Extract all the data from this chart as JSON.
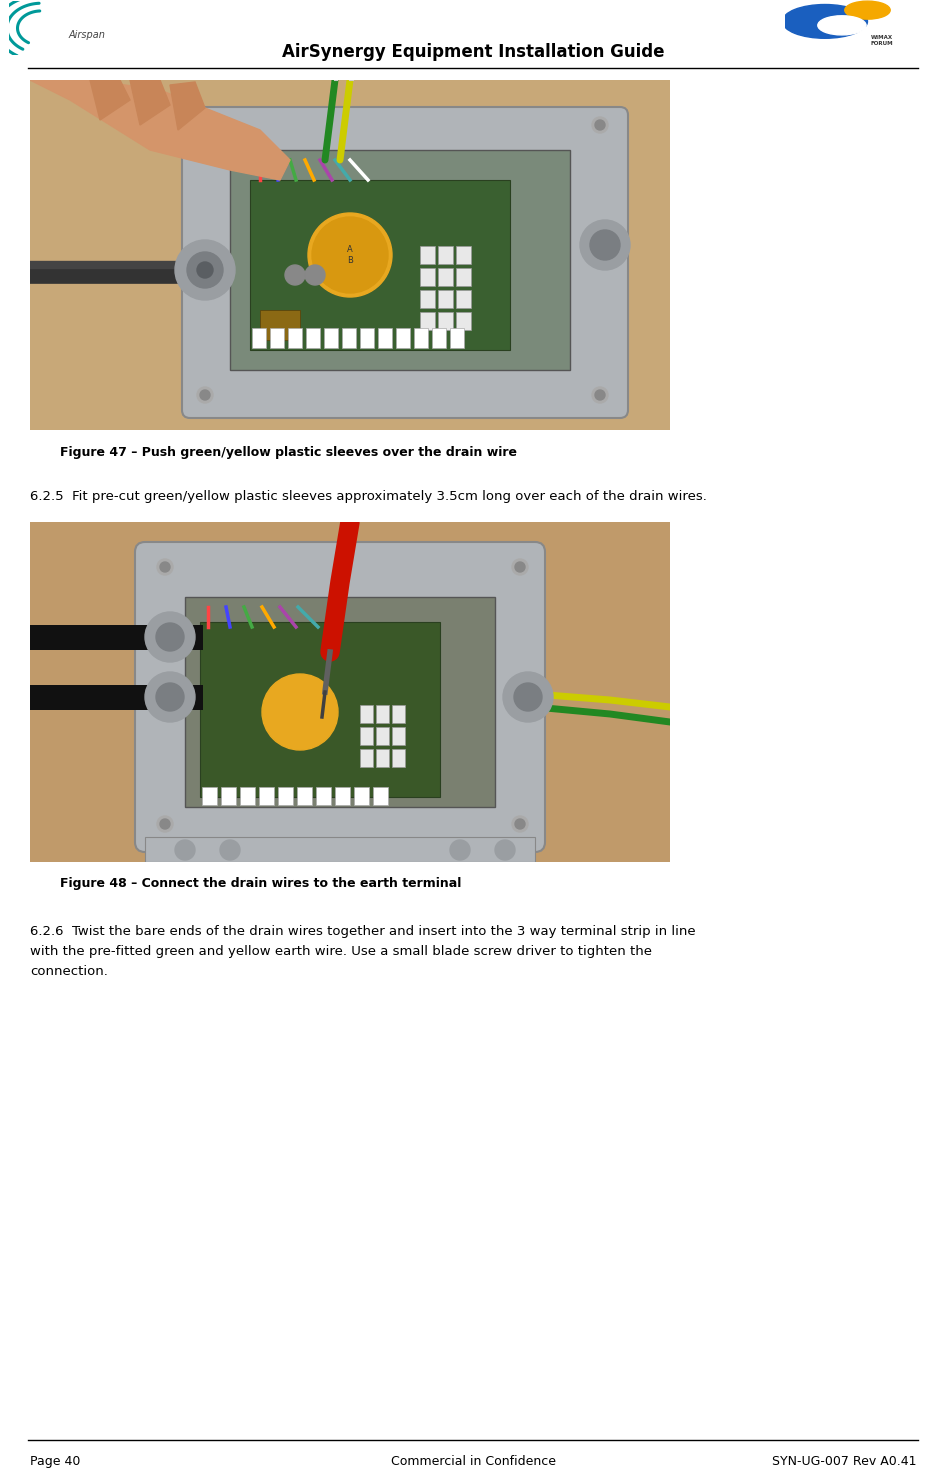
{
  "page_title": "AirSynergy Equipment Installation Guide",
  "bg_color": "#ffffff",
  "figure47_caption": "Figure 47 – Push green/yellow plastic sleeves over the drain wire",
  "figure48_caption": "Figure 48 – Connect the drain wires to the earth terminal",
  "section625_text": "6.2.5  Fit pre-cut green/yellow plastic sleeves approximately 3.5cm long over each of the drain wires.",
  "section626_line1": "6.2.6  Twist the bare ends of the drain wires together and insert into the 3 way terminal strip in line",
  "section626_line2": "with the pre-fitted green and yellow earth wire. Use a small blade screw driver to tighten the",
  "section626_line3": "connection.",
  "footer_left": "Page 40",
  "footer_center": "Commercial in Confidence",
  "footer_right": "SYN-UG-007 Rev A0.41",
  "caption_fontsize": 9.0,
  "body_fontsize": 9.5,
  "title_fontsize": 12,
  "footer_fontsize": 9.0,
  "text_color": "#000000",
  "line_color": "#000000",
  "img1_bg": "#b8956a",
  "img2_bg": "#c4a472",
  "box_color": "#b8bcc0",
  "teal": "#009999",
  "wimax_blue": "#1a5fbf",
  "wimax_orange": "#f5a800"
}
